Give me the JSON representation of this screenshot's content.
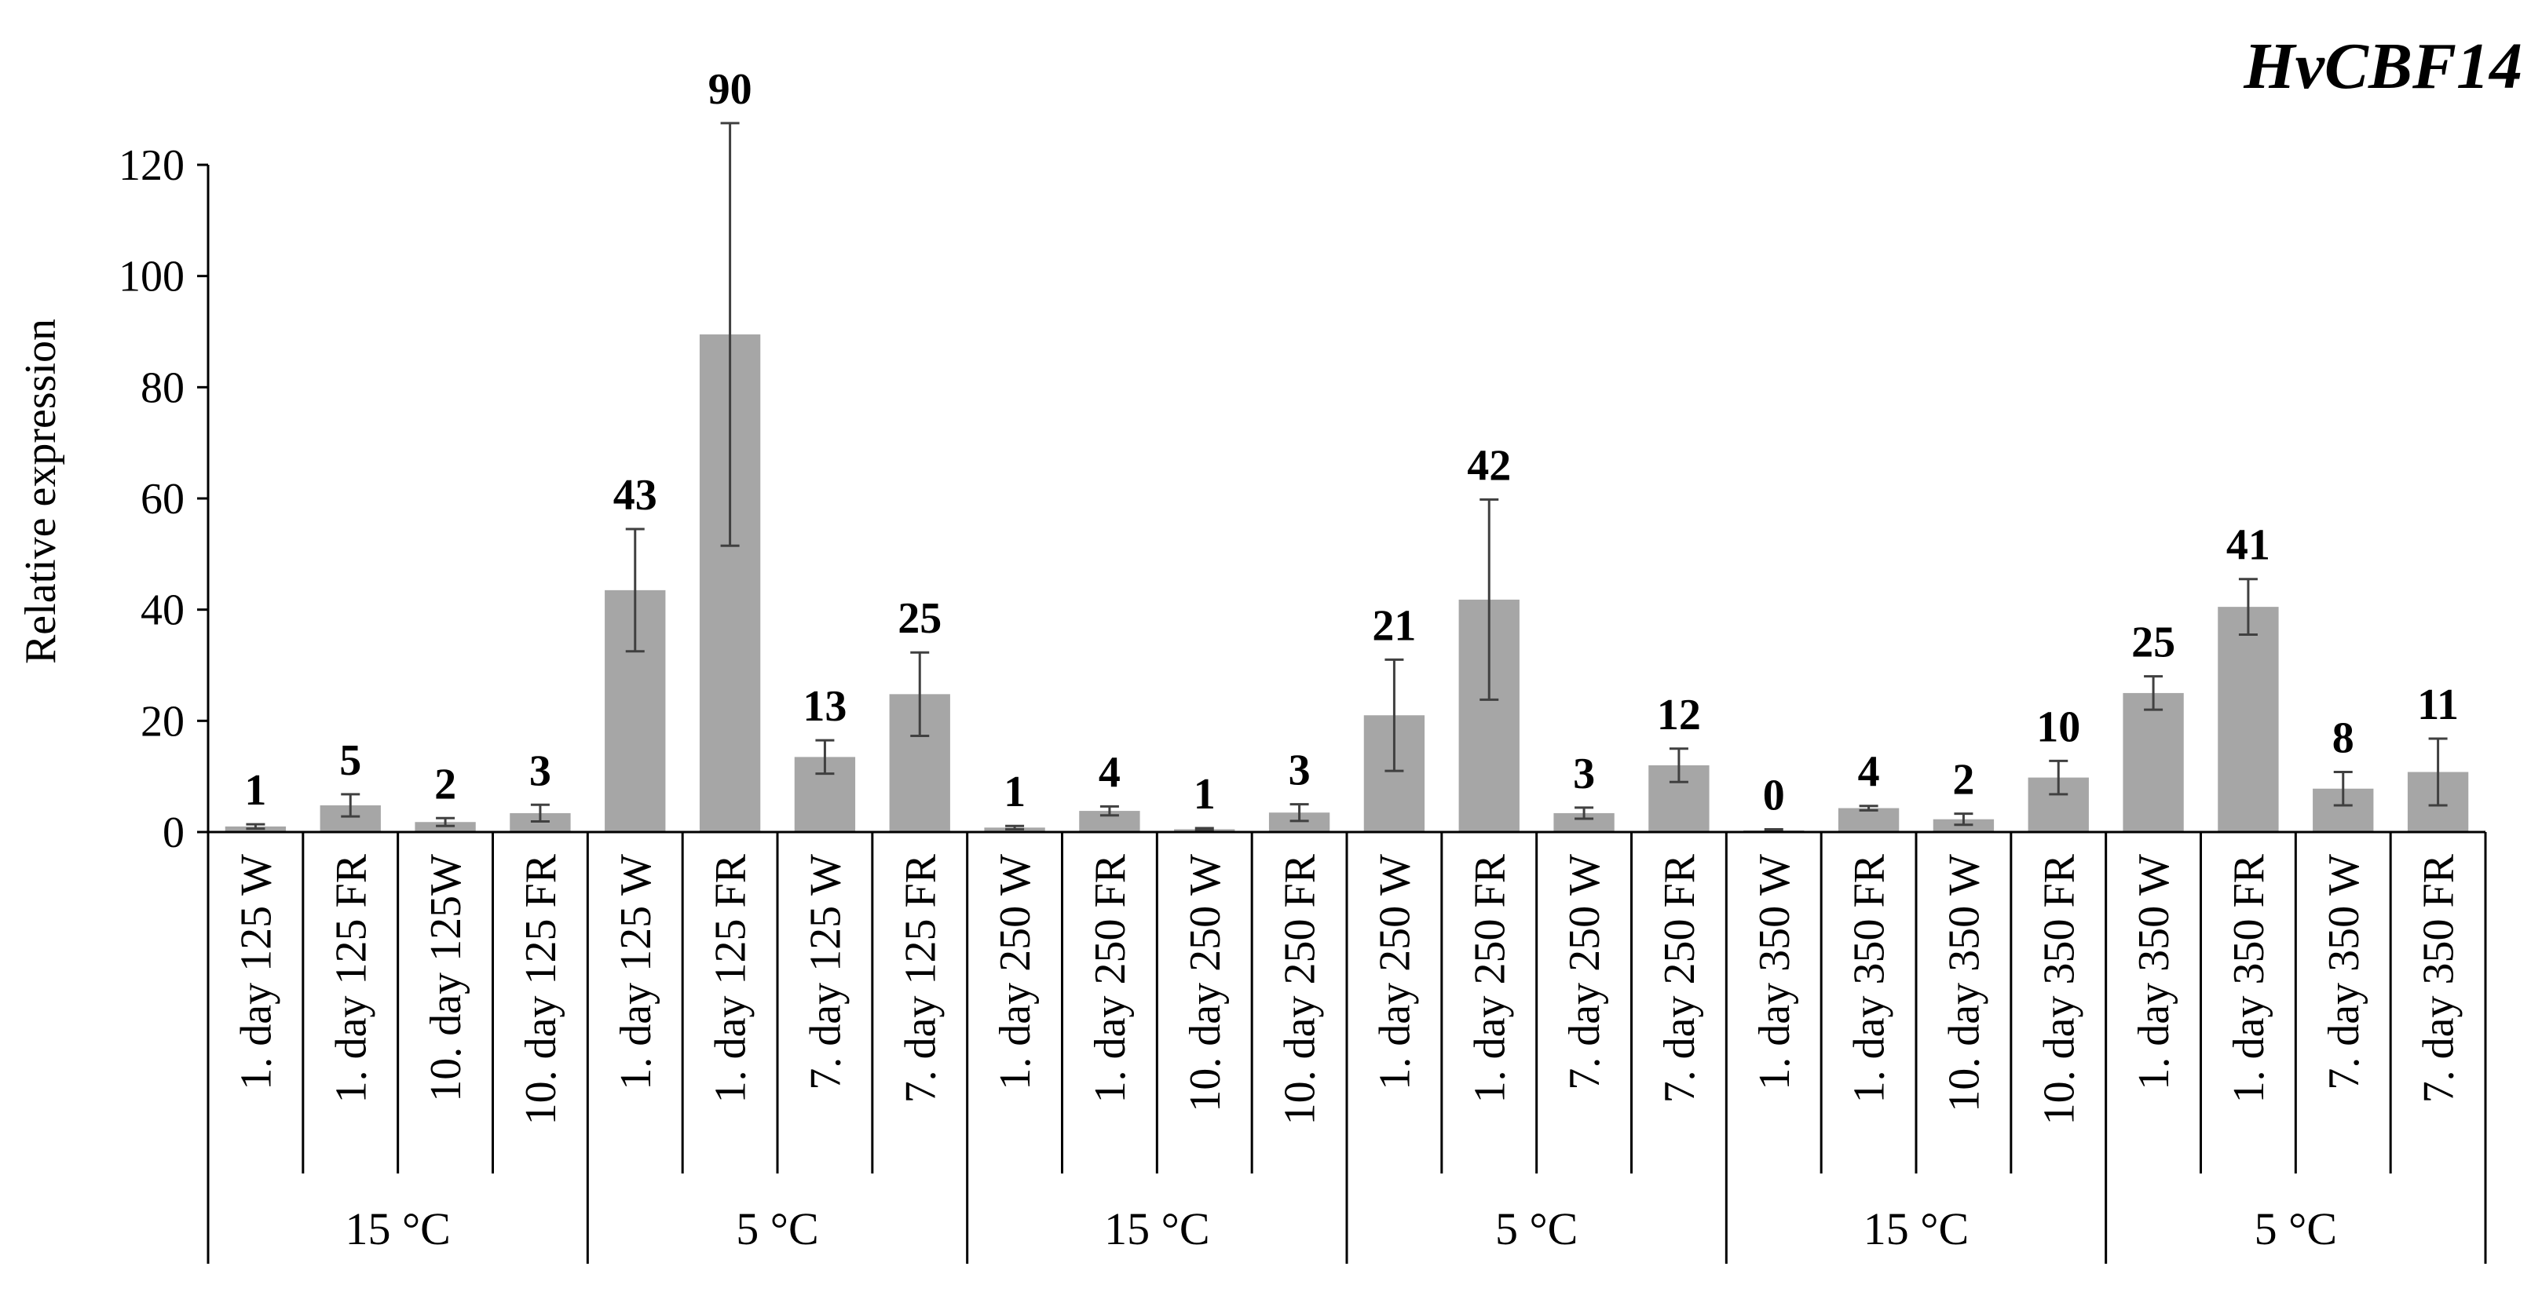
{
  "chart_data": {
    "type": "bar",
    "title": "HvCBF14",
    "ylabel": "Relative expression",
    "ylim": [
      0,
      120
    ],
    "yticks": [
      0,
      20,
      40,
      60,
      80,
      100,
      120
    ],
    "categories": [
      "1. day 125 W",
      "1. day 125 FR",
      "10. day 125W",
      "10. day 125 FR",
      "1. day 125 W",
      "1. day 125 FR",
      "7. day 125 W",
      "7. day 125 FR",
      "1. day 250 W",
      "1. day 250 FR",
      "10. day 250 W",
      "10. day 250 FR",
      "1. day 250 W",
      "1. day 250 FR",
      "7. day 250 W",
      "7. day 250 FR",
      "1. day 350 W",
      "1. day 350 FR",
      "10. day 350 W",
      "10. day 350 FR",
      "1. day 350 W",
      "1. day 350 FR",
      "7. day 350 W",
      "7. day 350 FR"
    ],
    "values": [
      1,
      4.8,
      1.8,
      3.4,
      43.5,
      89.5,
      13.5,
      24.8,
      0.8,
      3.8,
      0.5,
      3.5,
      21,
      41.8,
      3.4,
      12,
      0.3,
      4.3,
      2.3,
      9.8,
      25,
      40.5,
      7.8,
      10.8
    ],
    "error": [
      0.4,
      2,
      0.7,
      1.5,
      11,
      38,
      3,
      7.5,
      0.3,
      0.8,
      0.2,
      1.5,
      10,
      18,
      1,
      3,
      0.2,
      0.4,
      1,
      3,
      3,
      5,
      3,
      6
    ],
    "data_labels": [
      "1",
      "5",
      "2",
      "3",
      "43",
      "90",
      "13",
      "25",
      "1",
      "4",
      "1",
      "3",
      "21",
      "42",
      "3",
      "12",
      "0",
      "4",
      "2",
      "10",
      "25",
      "41",
      "8",
      "11"
    ],
    "groups": [
      "15 °C",
      "5 °C",
      "15 °C",
      "5 °C",
      "15 °C",
      "5 °C"
    ],
    "bar_color": "#a6a6a6",
    "grid": false
  }
}
